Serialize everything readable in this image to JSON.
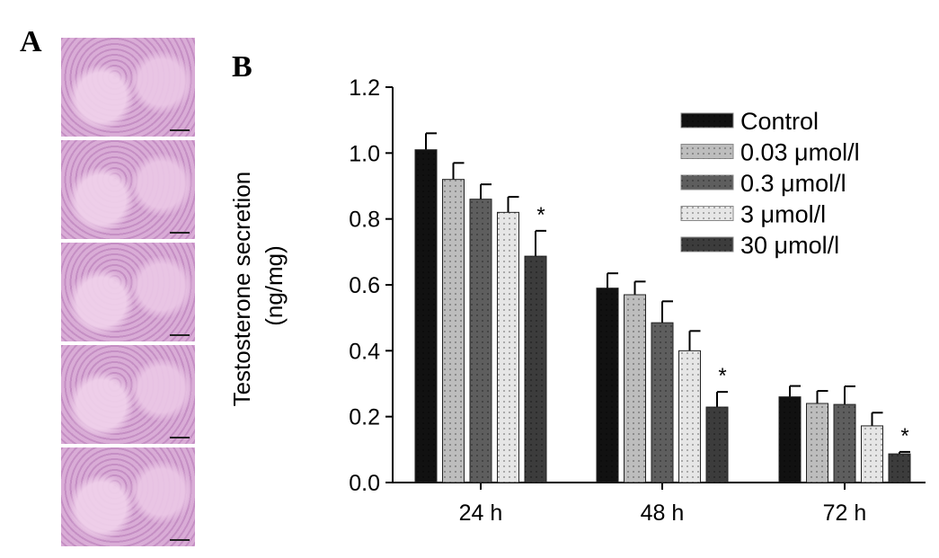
{
  "panels": {
    "a_label": "A",
    "b_label": "B"
  },
  "histology_images": [
    "Control",
    "0.03 μmol/l",
    "0.3 μmol/l",
    "3 μmol/l",
    "30 μmol/l"
  ],
  "chart_data": {
    "type": "bar",
    "title": "",
    "xlabel": "",
    "ylabel": "Testosterone secretion (ng/mg)",
    "ylabel_lines": [
      "Testosterone secretion",
      "(ng/mg)"
    ],
    "ylim": [
      0,
      1.2
    ],
    "yticks": [
      "0.0",
      "0.2",
      "0.4",
      "0.6",
      "0.8",
      "1.0",
      "1.2"
    ],
    "categories": [
      "24 h",
      "48 h",
      "72 h"
    ],
    "legend_position": "top-right",
    "series": [
      {
        "name": "Control",
        "values": [
          1.01,
          0.59,
          0.26
        ],
        "errors": [
          0.05,
          0.045,
          0.033
        ],
        "color": "#111111",
        "dots": "#555555"
      },
      {
        "name": "0.03 μmol/l",
        "values": [
          0.92,
          0.57,
          0.24
        ],
        "errors": [
          0.05,
          0.04,
          0.038
        ],
        "color": "#bdbdbd",
        "dots": "#666666"
      },
      {
        "name": "0.3 μmol/l",
        "values": [
          0.86,
          0.485,
          0.237
        ],
        "errors": [
          0.045,
          0.065,
          0.055
        ],
        "color": "#5e5e5e",
        "dots": "#333333"
      },
      {
        "name": "3 μmol/l",
        "values": [
          0.82,
          0.4,
          0.172
        ],
        "errors": [
          0.047,
          0.06,
          0.04
        ],
        "color": "#e6e6e6",
        "dots": "#777777"
      },
      {
        "name": "30 μmol/l",
        "values": [
          0.687,
          0.229,
          0.087
        ],
        "errors": [
          0.077,
          0.046,
          0.006
        ],
        "color": "#3c3c3c",
        "dots": "#222222"
      }
    ],
    "significance": {
      "symbol": "*",
      "series_index": 4,
      "categories": [
        0,
        1,
        2
      ]
    }
  }
}
